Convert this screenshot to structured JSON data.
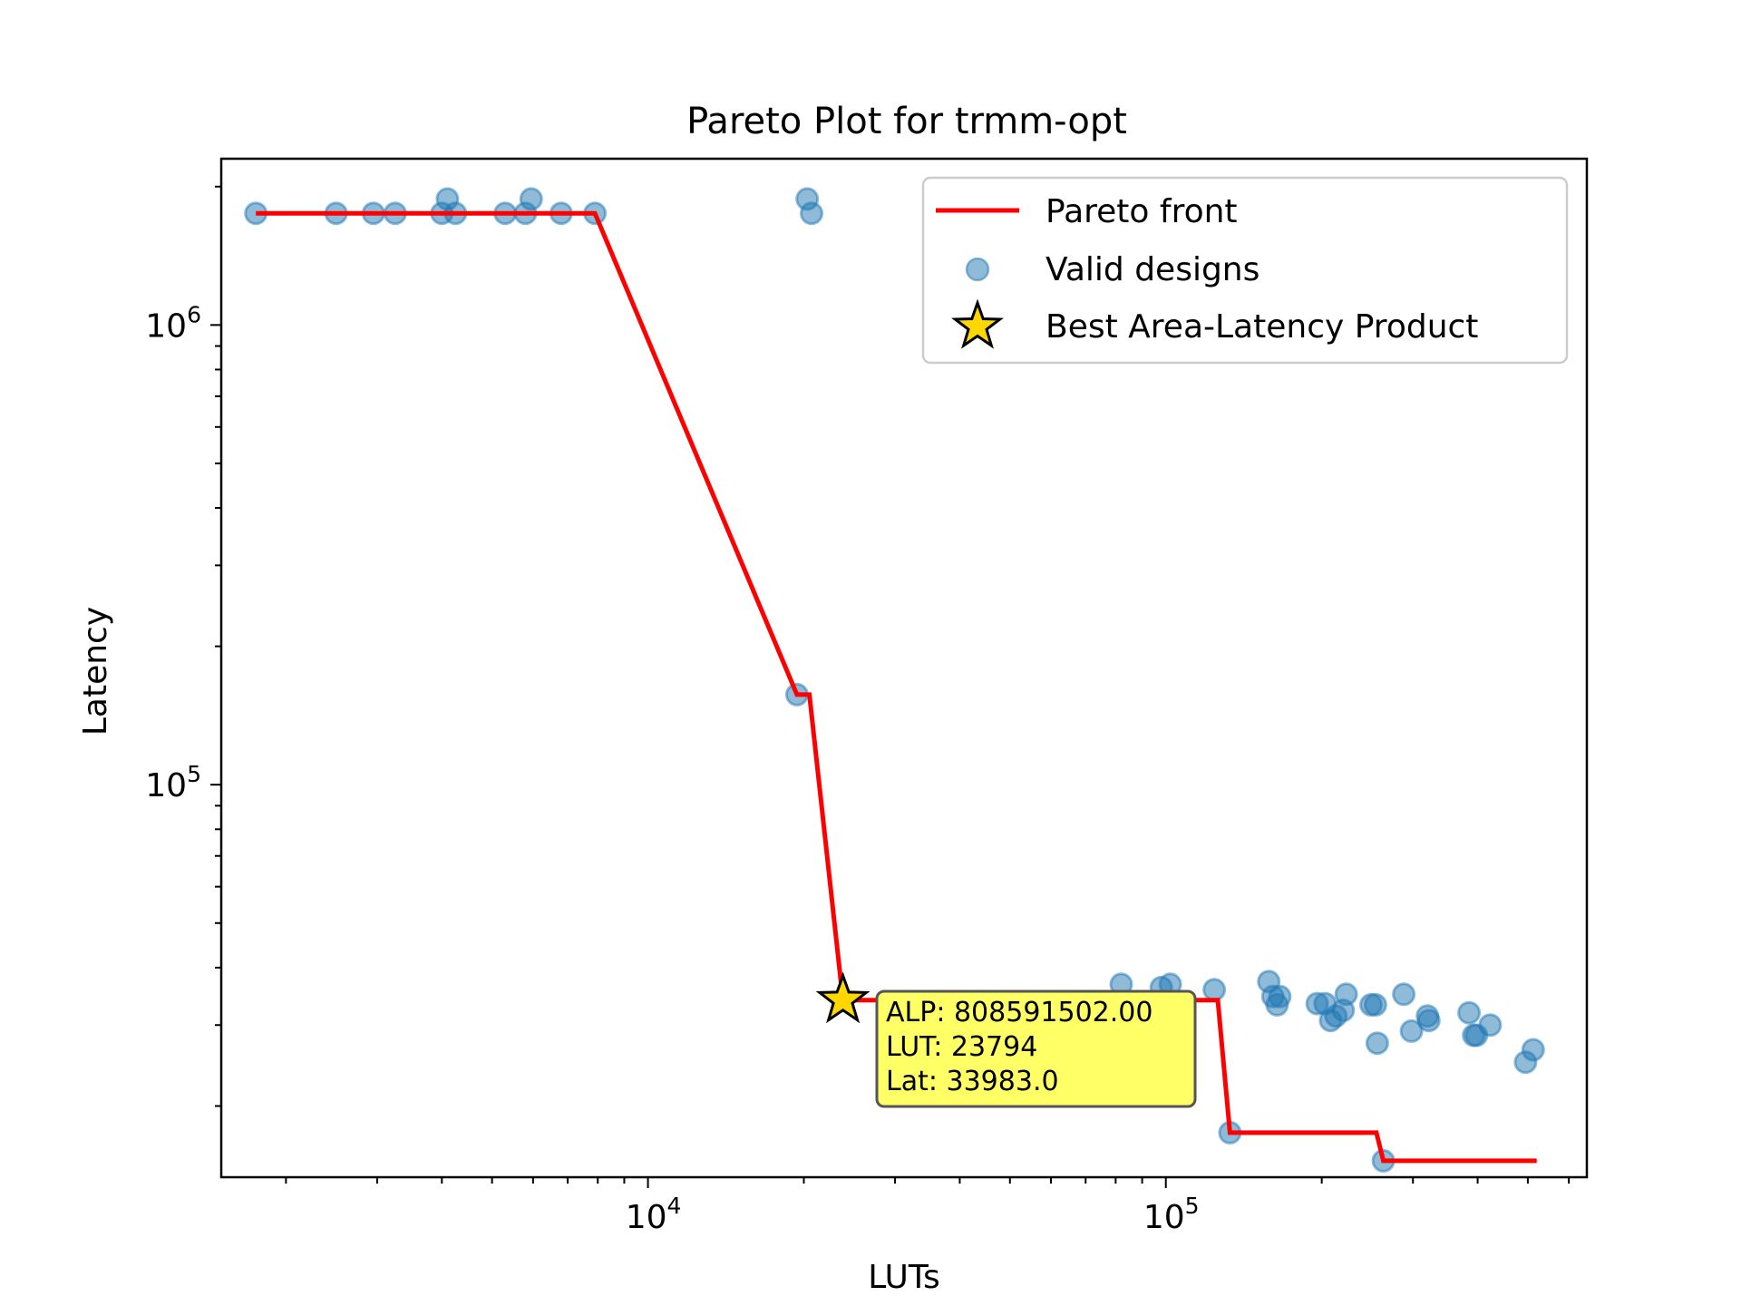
{
  "chart_data": {
    "type": "scatter",
    "title": "Pareto Plot for trmm-opt",
    "xlabel": "LUTs",
    "ylabel": "Latency",
    "xscale": "log",
    "yscale": "log",
    "xlim": [
      1500,
      650000
    ],
    "ylim": [
      14000,
      2300000
    ],
    "x_ticks": [
      {
        "value": 10000,
        "base": "10",
        "exp": "4"
      },
      {
        "value": 100000,
        "base": "10",
        "exp": "5"
      }
    ],
    "y_ticks": [
      {
        "value": 100000,
        "base": "10",
        "exp": "5"
      },
      {
        "value": 1000000,
        "base": "10",
        "exp": "6"
      }
    ],
    "grid": false,
    "legend_position": "upper right",
    "legend": {
      "pareto": "Pareto front",
      "valid": "Valid designs",
      "best": "Best Area-Latency Product"
    },
    "colors": {
      "pareto": "#ff0000",
      "valid": "#1f77b4",
      "best": "#ffd700",
      "annotation_bg": "#ffff66"
    },
    "series": [
      {
        "name": "Valid designs",
        "points": [
          [
            1750,
            1750000
          ],
          [
            2500,
            1750000
          ],
          [
            2950,
            1750000
          ],
          [
            3250,
            1750000
          ],
          [
            4000,
            1750000
          ],
          [
            4100,
            1880000
          ],
          [
            4250,
            1750000
          ],
          [
            5300,
            1750000
          ],
          [
            5800,
            1750000
          ],
          [
            5950,
            1880000
          ],
          [
            6800,
            1750000
          ],
          [
            7900,
            1750000
          ],
          [
            20300,
            1880000
          ],
          [
            20700,
            1750000
          ],
          [
            19400,
            157000
          ],
          [
            23794,
            33983
          ],
          [
            82000,
            36800
          ],
          [
            98000,
            36200
          ],
          [
            102000,
            36800
          ],
          [
            124000,
            35800
          ],
          [
            133000,
            17500
          ],
          [
            158000,
            37300
          ],
          [
            161000,
            34600
          ],
          [
            164000,
            33200
          ],
          [
            166000,
            34600
          ],
          [
            196000,
            33400
          ],
          [
            203000,
            33400
          ],
          [
            208000,
            30700
          ],
          [
            213000,
            31400
          ],
          [
            220000,
            32300
          ],
          [
            223000,
            35000
          ],
          [
            249000,
            33200
          ],
          [
            254000,
            33200
          ],
          [
            256000,
            27400
          ],
          [
            288000,
            35000
          ],
          [
            298000,
            29100
          ],
          [
            320000,
            31400
          ],
          [
            322000,
            30700
          ],
          [
            385000,
            31900
          ],
          [
            393000,
            28500
          ],
          [
            398000,
            28500
          ],
          [
            423000,
            30000
          ],
          [
            495000,
            24900
          ],
          [
            512000,
            26500
          ],
          [
            263000,
            15200
          ]
        ]
      },
      {
        "name": "Pareto front",
        "points": [
          [
            1750,
            1750000
          ],
          [
            7900,
            1750000
          ],
          [
            19400,
            157000
          ],
          [
            20500,
            157000
          ],
          [
            23794,
            33983
          ],
          [
            126000,
            33983
          ],
          [
            133000,
            17500
          ],
          [
            255000,
            17500
          ],
          [
            263000,
            15200
          ],
          [
            520000,
            15200
          ]
        ]
      }
    ],
    "best": {
      "name": "Best Area-Latency Product",
      "lut": 23794,
      "latency": 33983
    },
    "annotation": {
      "line1": "ALP: 808591502.00",
      "line2": "LUT: 23794",
      "line3": "Lat: 33983.0"
    }
  }
}
